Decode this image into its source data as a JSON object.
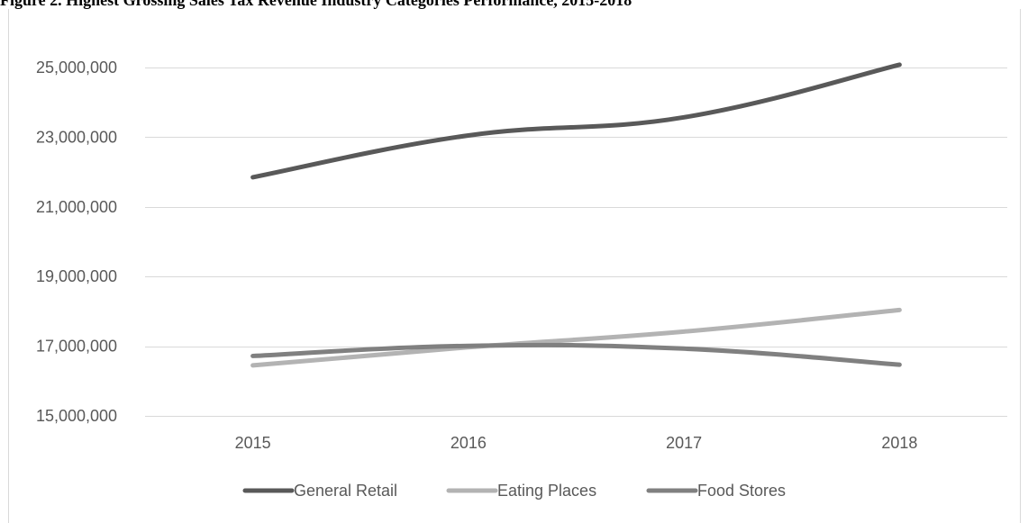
{
  "chart_data": {
    "type": "line",
    "title": "Figure 2. Highest Grossing Sales Tax Revenue Industry Categories Performance, 2015-2018",
    "categories": [
      "2015",
      "2016",
      "2017",
      "2018"
    ],
    "series": [
      {
        "name": "General Retail",
        "values": [
          21850000,
          23050000,
          23570000,
          25080000
        ],
        "color": "#595959"
      },
      {
        "name": "Eating Places",
        "values": [
          16450000,
          16970000,
          17420000,
          18040000
        ],
        "color": "#b3b3b3"
      },
      {
        "name": "Food Stores",
        "values": [
          16720000,
          17010000,
          16930000,
          16470000
        ],
        "color": "#808080"
      }
    ],
    "y_ticks": [
      15000000,
      17000000,
      19000000,
      21000000,
      23000000,
      25000000
    ],
    "y_tick_labels": [
      "15,000,000",
      "17,000,000",
      "19,000,000",
      "21,000,000",
      "23,000,000",
      "25,000,000"
    ],
    "ylim": [
      15000000,
      25000000
    ],
    "xlabel": "",
    "ylabel": "",
    "grid": true,
    "legend_position": "bottom",
    "gridline_color": "#d9d9d9"
  }
}
